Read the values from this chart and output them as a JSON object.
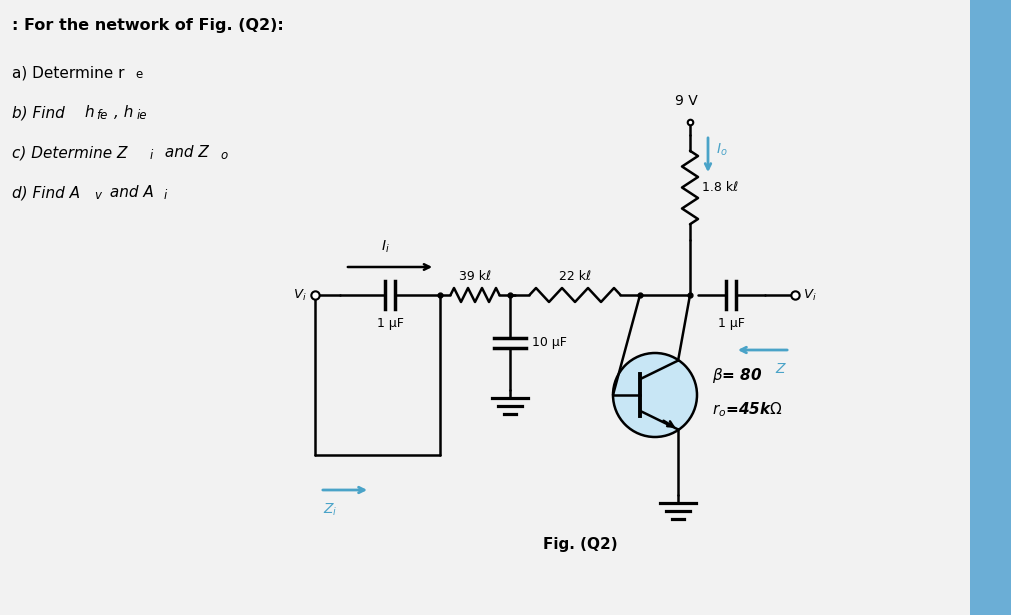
{
  "bg_color": "#f2f2f2",
  "title_text": ": For the network of Fig. (Q2):",
  "line_color": "#000000",
  "arrow_color": "#4aa3c8",
  "highlight_color": "#c8e6f5",
  "right_bar_color": "#6baed6",
  "vcc_label": "9 V",
  "r1_label": "1.8 kℓ",
  "r2_label": "39 kℓ",
  "r3_label": "22 kℓ",
  "c1_label": "10 μF",
  "c2_label": "1 μF",
  "c3_label": "1 μF",
  "beta_label": "β= 80",
  "ro_label": "r_o=45kΩ",
  "fig_label": "Fig. (Q2)",
  "text_items": [
    ": For the network of Fig. (Q2):",
    "a) Determine re",
    "b) Find hfe, hie",
    "c) Determine Zi and Zo",
    "d) Find Av and Ai"
  ]
}
